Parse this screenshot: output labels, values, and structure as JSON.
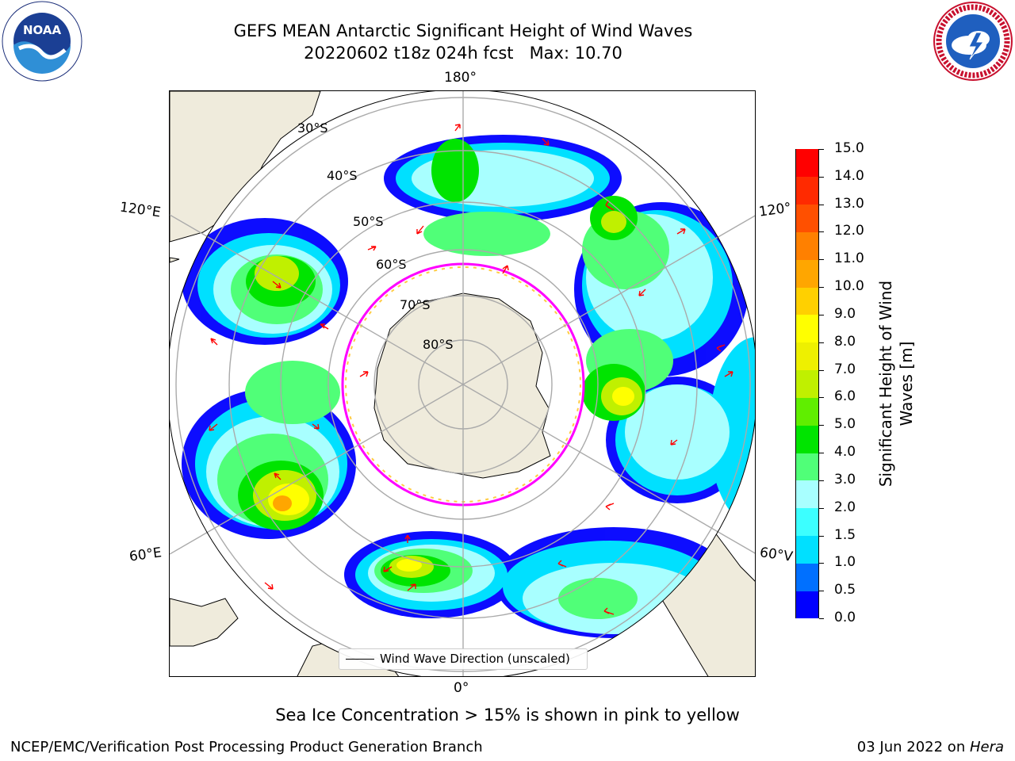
{
  "header": {
    "title_line1": "GEFS MEAN Antarctic Significant Height of Wind Waves",
    "title_line2": "20220602 t18z 024h fcst   Max: 10.70"
  },
  "logos": {
    "left": "NOAA",
    "right": "NATIONAL WEATHER SERVICE"
  },
  "map": {
    "projection": "south-polar-stereographic",
    "longitude_labels": {
      "top": "180°",
      "upper_left": "120°E",
      "upper_right": "120°",
      "lower_left": "60°E",
      "lower_right": "60°V",
      "bottom": "0°"
    },
    "latitude_labels": [
      "30°S",
      "40°S",
      "50°S",
      "60°S",
      "70°S",
      "80°S"
    ],
    "legend_label": "Wind Wave Direction (unscaled)",
    "arrow_color": "#ff0000",
    "land_color": "#efebdc",
    "sea_ice_edge_colors": [
      "#ff00ff",
      "#ffcc44"
    ]
  },
  "colorbar": {
    "title": "Significant Height of Wind Waves [m]",
    "title_line1": "Significant Height of Wind",
    "title_line2": "Waves [m]",
    "min": 0.0,
    "max": 15.0,
    "tick_labels": [
      "0.0",
      "0.5",
      "1.0",
      "1.5",
      "2.0",
      "3.0",
      "4.0",
      "5.0",
      "6.0",
      "7.0",
      "8.0",
      "9.0",
      "10.0",
      "11.0",
      "12.0",
      "13.0",
      "14.0",
      "15.0"
    ],
    "colors": [
      "#0000ff",
      "#0070ff",
      "#00e0ff",
      "#3cffff",
      "#a8ffff",
      "#50ff78",
      "#00e400",
      "#60ee00",
      "#c0f000",
      "#eef000",
      "#ffff00",
      "#ffd000",
      "#ffa600",
      "#ff8000",
      "#ff5000",
      "#ff2a00",
      "#ff0000"
    ]
  },
  "notes": {
    "sea_ice": "Sea Ice Concentration > 15% is shown in pink to yellow",
    "footer_left": "NCEP/EMC/Verification Post Processing Product Generation Branch",
    "footer_date": "03 Jun 2022 on ",
    "footer_machine": "Hera"
  }
}
